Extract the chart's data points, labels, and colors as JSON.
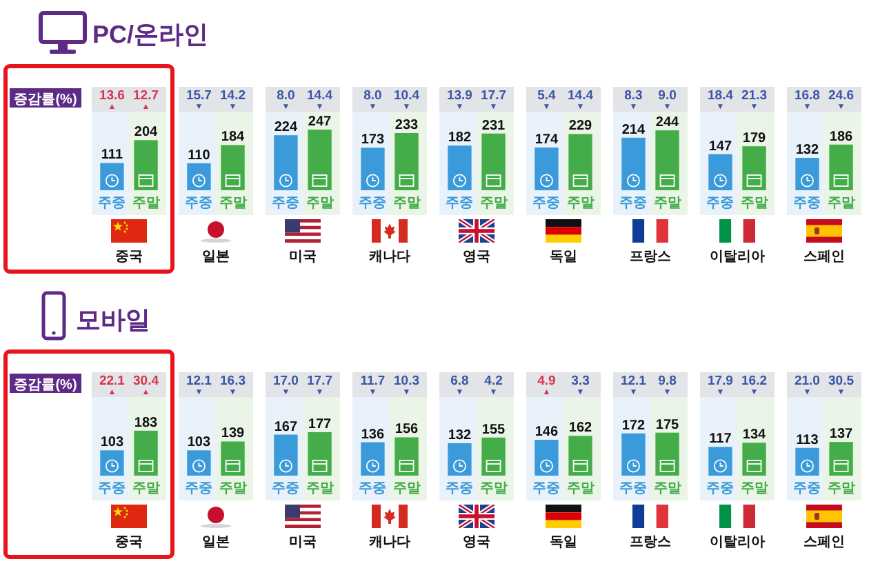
{
  "chart_data": [
    {
      "type": "bar",
      "title": "PC/온라인",
      "categories": [
        "중국",
        "일본",
        "미국",
        "캐나다",
        "영국",
        "독일",
        "프랑스",
        "이탈리아",
        "스페인"
      ],
      "series": [
        {
          "name": "주중",
          "color": "#3b9ad9",
          "values": [
            111,
            110,
            224,
            173,
            182,
            174,
            214,
            147,
            132
          ]
        },
        {
          "name": "주말",
          "color": "#44ad4a",
          "values": [
            204,
            184,
            247,
            233,
            231,
            229,
            244,
            179,
            186
          ]
        }
      ],
      "data_labels": true,
      "annotations": [
        "증감률(%)",
        "13.6$_{▲}$",
        "12.7$_{▲}$",
        "15.7$_{▼}$",
        "14.2$_{▼}$",
        "8.0$_{▼}$",
        "14.4$_{▼}$",
        "8.0$_{▼}$",
        "10.4$_{▼}$",
        "13.9$_{▼}$",
        "17.7$_{▼}$",
        "5.4$_{▼}$",
        "14.4$_{▼}$",
        "8.3$_{▼}$",
        "9.0$_{▼}$",
        "18.4$_{▼}$",
        "21.3$_{▼}$",
        "16.8$_{▼}$",
        "24.6$_{▼}$"
      ]
    },
    {
      "type": "bar",
      "title": "모바일",
      "categories": [
        "중국",
        "일본",
        "미국",
        "캐나다",
        "영국",
        "독일",
        "프랑스",
        "이탈리아",
        "스페인"
      ],
      "series": [
        {
          "name": "주중",
          "color": "#3b9ad9",
          "values": [
            103,
            103,
            167,
            136,
            132,
            146,
            172,
            117,
            113
          ]
        },
        {
          "name": "주말",
          "color": "#44ad4a",
          "values": [
            183,
            139,
            177,
            156,
            155,
            162,
            175,
            134,
            137
          ]
        }
      ],
      "data_labels": true,
      "annotations": [
        "증감률(%)",
        "22.1$_{▲}$",
        "30.4$_{▲}$",
        "12.1$_{▼}$",
        "16.3$_{▼}$",
        "17.0$_{▼}$",
        "17.7$_{▼}$",
        "11.7$_{▼}$",
        "10.3$_{▼}$",
        "6.8$_{▼}$",
        "4.2$_{▼}$",
        "4.9$_{▲}$",
        "3.3$_{▼}$",
        "12.1$_{▼}$",
        "9.8$_{▼}$",
        "17.9$_{▼}$",
        "16.2$_{▼}$",
        "21.0$_{▼}$",
        "30.5$_{▼}$"
      ]
    }
  ]
}
